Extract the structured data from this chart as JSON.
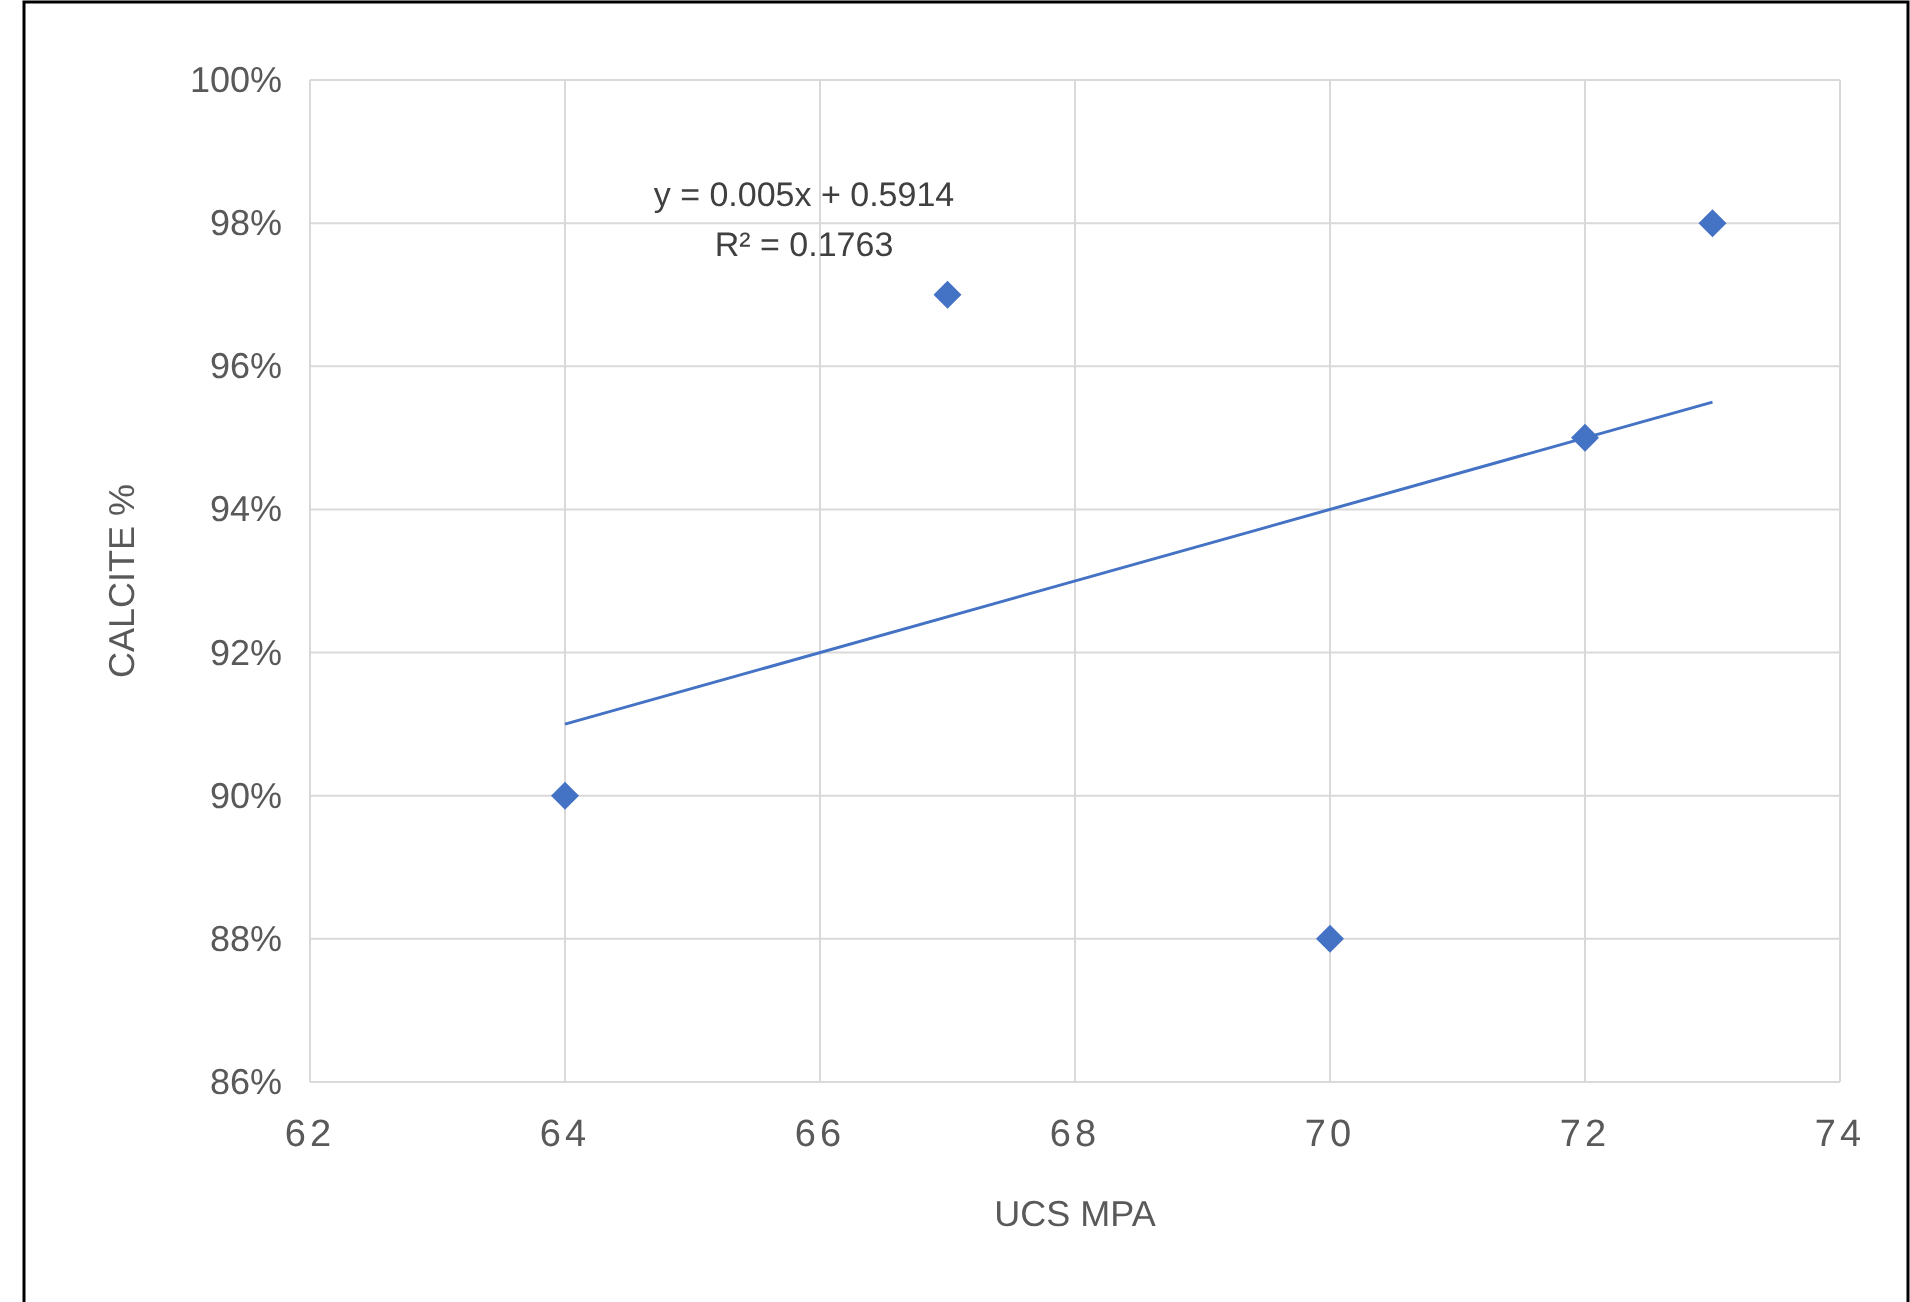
{
  "chart_data": {
    "type": "scatter",
    "xlabel": "UCS MPA",
    "ylabel": "CALCITE %",
    "xlim": [
      62,
      74
    ],
    "xticks": [
      62,
      64,
      66,
      68,
      70,
      72,
      74
    ],
    "ylim": [
      86,
      100
    ],
    "yticks": [
      {
        "value": 86,
        "label": "86%"
      },
      {
        "value": 88,
        "label": "88%"
      },
      {
        "value": 90,
        "label": "90%"
      },
      {
        "value": 92,
        "label": "92%"
      },
      {
        "value": 94,
        "label": "94%"
      },
      {
        "value": 96,
        "label": "96%"
      },
      {
        "value": 98,
        "label": "98%"
      },
      {
        "value": 100,
        "label": "100%"
      }
    ],
    "grid": true,
    "marker": "diamond",
    "annotations": [
      "y = 0.005x + 0.5914",
      "R² = 0.1763"
    ],
    "series": [
      {
        "color": "#4472c4",
        "x": [
          64,
          67,
          70,
          72,
          73
        ],
        "values": [
          90,
          97,
          88,
          95,
          98
        ]
      },
      {
        "type": "line",
        "color": "#4472c4",
        "x": [
          64,
          73
        ],
        "values": [
          91.0,
          95.5
        ],
        "marker": "none"
      }
    ]
  }
}
